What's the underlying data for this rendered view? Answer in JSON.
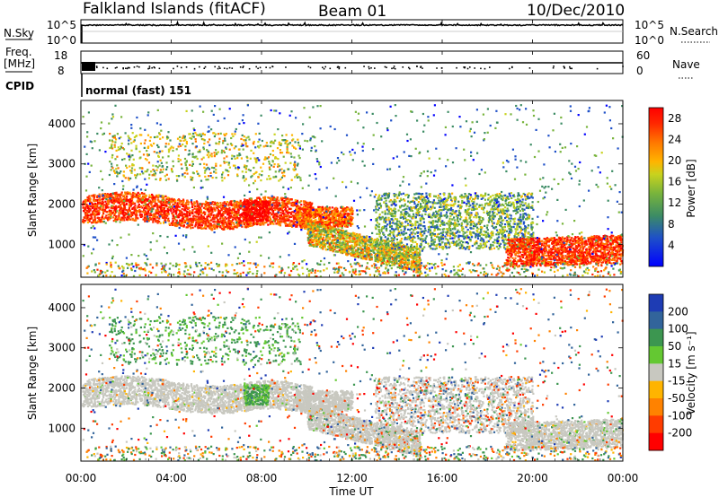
{
  "header": {
    "station": "Falkland Islands (fitACF)",
    "beam": "Beam 01",
    "date": "10/Dec/2010",
    "cpid_label": "CPID",
    "mode": "normal (fast) 151"
  },
  "panels": {
    "nsky": {
      "label": "N.Sky",
      "ticks": [
        "10^5",
        "10^0"
      ],
      "right_label": "N.Search",
      "right_ticks": [
        "10^5",
        "10^0"
      ]
    },
    "freq": {
      "label": "Freq.",
      "unit": "[MHz]",
      "ticks": [
        "18",
        "8"
      ],
      "right_label": "Nave",
      "right_ticks": [
        "60",
        "0"
      ]
    },
    "power": {
      "ylabel": "Slant Range [km]",
      "cbar_label": "Power [dB]"
    },
    "velocity": {
      "ylabel": "Slant Range [km]",
      "cbar_label": "Velocity [m s⁻¹]"
    }
  },
  "xaxis": {
    "title": "Time UT"
  },
  "chart_data": [
    {
      "type": "line",
      "title": "N.Sky / N.Search",
      "x": [
        "00:00",
        "04:00",
        "08:00",
        "12:00",
        "16:00",
        "20:00",
        "00:00"
      ],
      "y_scale": "log",
      "ylim": [
        1,
        100000
      ],
      "series": [
        {
          "name": "N.Sky",
          "values": [
            40000,
            45000,
            42000,
            40000,
            42000,
            41000,
            40000
          ]
        },
        {
          "name": "N.Search",
          "values": [
            40000,
            45000,
            42000,
            40000,
            42000,
            41000,
            40000
          ]
        }
      ]
    },
    {
      "type": "line",
      "title": "Freq. / Nave",
      "x": [
        "00:00",
        "04:00",
        "08:00",
        "12:00",
        "16:00",
        "20:00",
        "00:00"
      ],
      "ylim_left": [
        8,
        18
      ],
      "ylim_right": [
        0,
        60
      ],
      "series": [
        {
          "name": "Freq.",
          "values": [
            10.5,
            10.5,
            10.5,
            10.5,
            10.5,
            10.5,
            10.5
          ]
        },
        {
          "name": "Nave",
          "values": [
            22,
            22,
            22,
            22,
            22,
            22,
            22
          ]
        }
      ]
    },
    {
      "type": "heatmap",
      "title": "Power",
      "xlabel": "Time UT",
      "ylabel": "Slant Range [km]",
      "x_ticks": [
        "00:00",
        "04:00",
        "08:00",
        "12:00",
        "16:00",
        "20:00",
        "00:00"
      ],
      "y_ticks": [
        1000,
        2000,
        3000,
        4000
      ],
      "xlim_hours": [
        0,
        24
      ],
      "ylim": [
        180,
        4580
      ],
      "colorbar": {
        "label": "Power [dB]",
        "ticks": [
          4,
          8,
          12,
          16,
          20,
          24,
          28
        ],
        "range": [
          0,
          30
        ],
        "colors": [
          "#0000ff",
          "#1e50c8",
          "#3c8c64",
          "#78b43c",
          "#c8d21e",
          "#ffb400",
          "#ff7800",
          "#ff2800",
          "#ff0000"
        ]
      },
      "features": [
        {
          "name": "main echo band",
          "time_h": [
            0,
            10
          ],
          "range_km": [
            1500,
            2200
          ],
          "level_db": 28
        },
        {
          "name": "descending band",
          "time_h": [
            10,
            15
          ],
          "range_km": [
            600,
            1400
          ],
          "level_db": 16
        },
        {
          "name": "evening band",
          "time_h": [
            19,
            24
          ],
          "range_km": [
            450,
            1200
          ],
          "level_db": 24
        },
        {
          "name": "late band",
          "time_h": [
            14,
            20
          ],
          "range_km": [
            900,
            2300
          ],
          "level_db": 10
        }
      ]
    },
    {
      "type": "heatmap",
      "title": "Velocity",
      "xlabel": "Time UT",
      "ylabel": "Slant Range [km]",
      "x_ticks": [
        "00:00",
        "04:00",
        "08:00",
        "12:00",
        "16:00",
        "20:00",
        "00:00"
      ],
      "y_ticks": [
        1000,
        2000,
        3000,
        4000
      ],
      "xlim_hours": [
        0,
        24
      ],
      "ylim": [
        180,
        4580
      ],
      "colorbar": {
        "label": "Velocity [m s⁻¹]",
        "ticks": [
          200,
          100,
          50,
          15,
          -15,
          -50,
          -100,
          -200
        ],
        "colors": [
          "#1e3cb4",
          "#32649b",
          "#3c9650",
          "#64c832",
          "#c8c8c0",
          "#ffb400",
          "#ff8200",
          "#ff3c00",
          "#ff0000"
        ]
      },
      "features": [
        {
          "name": "ground scatter band",
          "time_h": [
            0,
            24
          ],
          "range_km": [
            500,
            2300
          ],
          "velocity": 0
        },
        {
          "name": "positive patch",
          "time_h": [
            7.2,
            8.3
          ],
          "range_km": [
            1600,
            2100
          ],
          "velocity": 30
        }
      ]
    }
  ]
}
